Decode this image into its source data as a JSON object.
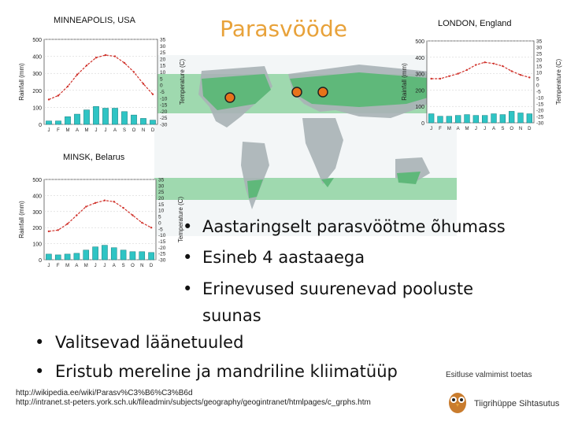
{
  "slide": {
    "title": "Parasvööde",
    "bullets_inner": [
      "Aastaringselt parasvöötme õhumass",
      " Esineb 4 aastaaega",
      "Erinevused suurenevad pooluste",
      "suunas"
    ],
    "bullets_outer": [
      "Valitsevad läänetuuled",
      "Eristub mereline ja mandriline kliimatüüp"
    ],
    "sources": [
      "http://wikipedia.ee/wiki/Parasv%C3%B6%C3%B6d",
      "http://intranet.st-peters.york.sch.uk/fileadmin/subjects/geography/geogintranet/htmlpages/c_grphs.htm"
    ],
    "caption": "Esitluse valmimist toetas",
    "logo_text": "Tiigrihüppe Sihtasutus",
    "colors": {
      "title": "#e8a23a",
      "marker": "#e8731a",
      "zone": "#5fb87a",
      "line": "#d0322b",
      "bar": "#2fc4c4"
    }
  },
  "chart_data": [
    {
      "type": "bar",
      "title": "MINNEAPOLIS, USA",
      "ylabel": "Rainfall (mm)",
      "y2label": "Temperature (C)",
      "categories": [
        "J",
        "F",
        "M",
        "A",
        "M",
        "J",
        "J",
        "A",
        "S",
        "O",
        "N",
        "D"
      ],
      "left_ticks": [
        "500",
        "400",
        "300",
        "200",
        "100",
        "0"
      ],
      "right_ticks": [
        "35",
        "30",
        "25",
        "20",
        "15",
        "10",
        "5",
        "0",
        "-5",
        "-10",
        "-15",
        "-20",
        "-25",
        "-30"
      ],
      "ylim": [
        0,
        500
      ],
      "y2lim": [
        -30,
        35
      ],
      "series": [
        {
          "values": [
            20,
            20,
            45,
            60,
            85,
            105,
            95,
            95,
            75,
            55,
            35,
            25
          ]
        },
        {
          "values": [
            -11,
            -8,
            -1,
            8,
            15,
            21,
            23,
            22,
            17,
            10,
            1,
            -7
          ]
        }
      ]
    },
    {
      "type": "bar",
      "title": "LONDON, England",
      "ylabel": "Rainfall (mm)",
      "y2label": "Temperature (C)",
      "categories": [
        "J",
        "F",
        "M",
        "A",
        "M",
        "J",
        "J",
        "A",
        "S",
        "O",
        "N",
        "D"
      ],
      "left_ticks": [
        "500",
        "400",
        "300",
        "200",
        "100",
        "0"
      ],
      "right_ticks": [
        "35",
        "30",
        "25",
        "20",
        "15",
        "10",
        "5",
        "0",
        "-5",
        "-10",
        "-15",
        "-20",
        "-25",
        "-30"
      ],
      "ylim": [
        0,
        500
      ],
      "y2lim": [
        -30,
        35
      ],
      "series": [
        {
          "values": [
            55,
            40,
            40,
            45,
            50,
            45,
            45,
            55,
            50,
            70,
            60,
            55
          ]
        },
        {
          "values": [
            5,
            5,
            7,
            9,
            12,
            16,
            18,
            17,
            15,
            11,
            8,
            6
          ]
        }
      ]
    },
    {
      "type": "bar",
      "title": "MINSK, Belarus",
      "ylabel": "Rainfall (mm)",
      "y2label": "Temperature (C)",
      "categories": [
        "J",
        "F",
        "M",
        "A",
        "M",
        "J",
        "J",
        "A",
        "S",
        "O",
        "N",
        "D"
      ],
      "left_ticks": [
        "500",
        "400",
        "300",
        "200",
        "100",
        "0"
      ],
      "right_ticks": [
        "35",
        "30",
        "25",
        "20",
        "15",
        "10",
        "5",
        "0",
        "-5",
        "-10",
        "-15",
        "-20",
        "-25",
        "-30"
      ],
      "ylim": [
        0,
        500
      ],
      "y2lim": [
        -30,
        35
      ],
      "series": [
        {
          "values": [
            35,
            30,
            35,
            40,
            60,
            80,
            90,
            75,
            60,
            50,
            50,
            45
          ]
        },
        {
          "values": [
            -7,
            -6,
            -1,
            6,
            13,
            16,
            18,
            17,
            12,
            6,
            0,
            -4
          ]
        }
      ]
    }
  ]
}
